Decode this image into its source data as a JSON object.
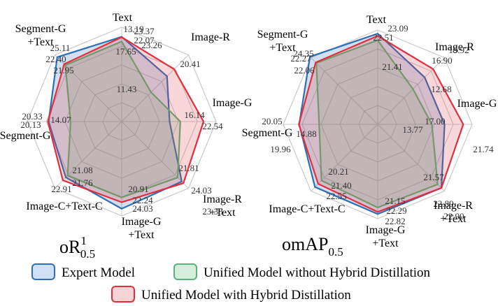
{
  "colors": {
    "expert": "#2f6fb6",
    "unified_no_hd": "#5cb27a",
    "unified_hd": "#e0303d",
    "grid": "#c8c8c8"
  },
  "legend": {
    "expert": "Expert Model",
    "unified_no_hd": "Unified Model without Hybrid Distillation",
    "unified_hd": "Unified Model with Hybrid Distillation"
  },
  "chart_data": [
    {
      "type": "radar",
      "title_main": "oR",
      "title_sup": "1",
      "title_sub": "0.5",
      "axes": [
        [
          "Text"
        ],
        [
          "Image-R"
        ],
        [
          "Image-G"
        ],
        [
          "Image-R",
          "+Text"
        ],
        [
          "Image-G",
          "+Text"
        ],
        [
          "Image-C+Text-C"
        ],
        [
          "Segment-G"
        ],
        [
          "Segment-G",
          "+Text"
        ]
      ],
      "range": [
        0,
        26
      ],
      "series": [
        {
          "key": "expert",
          "name": "Expert Model",
          "values": [
            23.37,
            17.65,
            13.19,
            23.38,
            24.03,
            21.76,
            20.13,
            25.11
          ]
        },
        {
          "key": "unified_no_hd",
          "name": "Unified Model without Hybrid Distillation",
          "values": [
            22.07,
            11.43,
            16.14,
            21.81,
            20.91,
            21.08,
            14.07,
            21.95
          ]
        },
        {
          "key": "unified_hd",
          "name": "Unified Model with Hybrid Distillation",
          "values": [
            23.26,
            20.41,
            22.54,
            24.03,
            22.24,
            22.91,
            20.33,
            22.4
          ]
        }
      ]
    },
    {
      "type": "radar",
      "title_main": "omAP",
      "title_sup": "",
      "title_sub": "0.5",
      "axes": [
        [
          "Text"
        ],
        [
          "Image-R"
        ],
        [
          "Image-G"
        ],
        [
          "Image-R",
          "+Text"
        ],
        [
          "Image-G",
          "+Text"
        ],
        [
          "Image-C+Text-C"
        ],
        [
          "Segment-G"
        ],
        [
          "Segment-G",
          "+Text"
        ]
      ],
      "range": [
        0,
        24
      ],
      "series": [
        {
          "key": "expert",
          "name": "Expert Model",
          "values": [
            23.09,
            16.9,
            17.0,
            22.89,
            22.82,
            22.55,
            19.96,
            24.35
          ]
        },
        {
          "key": "unified_no_hd",
          "name": "Unified Model without Hybrid Distillation",
          "values": [
            21.41,
            12.68,
            13.77,
            21.57,
            21.15,
            20.21,
            14.88,
            22.06
          ]
        },
        {
          "key": "unified_hd",
          "name": "Unified Model with Hybrid Distillation",
          "values": [
            22.51,
            19.92,
            21.74,
            22.9,
            22.29,
            21.4,
            20.05,
            22.27
          ]
        }
      ]
    }
  ]
}
